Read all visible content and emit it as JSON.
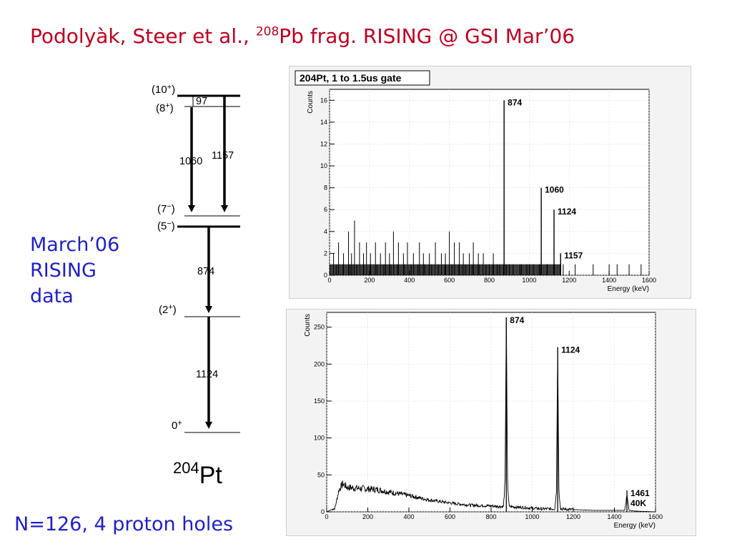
{
  "title": {
    "authors": "Podolyàk, Steer  et al., ",
    "mass_number": "208",
    "rest": "Pb frag.  RISING @ GSI Mar’06"
  },
  "side_note": [
    "March’06",
    "RISING",
    "data"
  ],
  "footer": "N=126, 4 proton holes",
  "level_scheme": {
    "nucleus_mass": "204",
    "nucleus_symbol": "Pt",
    "levels": [
      {
        "label": "(10",
        "sup": "+",
        "close": ")"
      },
      {
        "label": "(8",
        "sup": "+",
        "close": ")"
      },
      {
        "label": "(7",
        "sup": "−",
        "close": ")"
      },
      {
        "label": "(5",
        "sup": "−",
        "close": ")"
      },
      {
        "label": "(2",
        "sup": "+",
        "close": ")"
      },
      {
        "label": "0",
        "sup": "+",
        "close": ""
      }
    ],
    "transitions": [
      "97",
      "1060",
      "1157",
      "874",
      "1124"
    ]
  },
  "chart_data": [
    {
      "type": "bar",
      "title": "204Pt, 1 to 1.5us gate",
      "xlabel": "Energy (keV)",
      "ylabel": "Counts",
      "xlim": [
        0,
        1600
      ],
      "ylim": [
        0,
        17
      ],
      "xticks": [
        "0",
        "200",
        "400",
        "600",
        "800",
        "1000",
        "1200",
        "1400",
        "1600"
      ],
      "yticks": [
        "0",
        "2",
        "4",
        "6",
        "8",
        "10",
        "12",
        "14",
        "16"
      ],
      "peaks": [
        {
          "energy": 874,
          "counts": 16,
          "label": "874"
        },
        {
          "energy": 1060,
          "counts": 8,
          "label": "1060"
        },
        {
          "energy": 1124,
          "counts": 6,
          "label": "1124"
        },
        {
          "energy": 1157,
          "counts": 2,
          "label": "1157"
        }
      ],
      "background": [
        [
          20,
          2
        ],
        [
          45,
          3
        ],
        [
          70,
          2
        ],
        [
          95,
          4
        ],
        [
          110,
          2
        ],
        [
          125,
          5
        ],
        [
          150,
          3
        ],
        [
          170,
          2
        ],
        [
          185,
          3
        ],
        [
          205,
          2
        ],
        [
          230,
          3
        ],
        [
          255,
          2
        ],
        [
          280,
          3
        ],
        [
          300,
          2
        ],
        [
          320,
          4
        ],
        [
          345,
          3
        ],
        [
          370,
          2
        ],
        [
          390,
          3
        ],
        [
          420,
          2
        ],
        [
          450,
          3
        ],
        [
          470,
          2
        ],
        [
          500,
          2
        ],
        [
          530,
          3
        ],
        [
          560,
          2
        ],
        [
          580,
          2
        ],
        [
          600,
          4
        ],
        [
          625,
          3
        ],
        [
          650,
          3
        ],
        [
          670,
          2
        ],
        [
          700,
          2
        ],
        [
          720,
          3
        ],
        [
          745,
          2
        ],
        [
          770,
          2
        ],
        [
          800,
          1
        ],
        [
          820,
          2
        ],
        [
          840,
          1
        ],
        [
          900,
          1
        ],
        [
          960,
          1
        ],
        [
          1000,
          1
        ],
        [
          1050,
          1
        ],
        [
          1090,
          1
        ],
        [
          1170,
          1
        ],
        [
          1230,
          1
        ],
        [
          1320,
          1
        ],
        [
          1400,
          1
        ],
        [
          1440,
          1
        ],
        [
          1500,
          1
        ],
        [
          1560,
          1
        ]
      ]
    },
    {
      "type": "line",
      "title": "",
      "xlabel": "Energy (keV)",
      "ylabel": "Counts",
      "xlim": [
        0,
        1600
      ],
      "ylim": [
        0,
        270
      ],
      "xticks": [
        "0",
        "200",
        "400",
        "600",
        "800",
        "1000",
        "1200",
        "1400",
        "1600"
      ],
      "yticks": [
        "0",
        "50",
        "100",
        "150",
        "200",
        "250"
      ],
      "series": [
        {
          "x": [
            0,
            40,
            60,
            80,
            100,
            150,
            200,
            250,
            300,
            400,
            500,
            600,
            700,
            800,
            860,
            868,
            874,
            880,
            888,
            950,
            1050,
            1110,
            1118,
            1124,
            1130,
            1138,
            1200,
            1300,
            1400,
            1450,
            1457,
            1461,
            1465,
            1472,
            1500,
            1600
          ],
          "y": [
            0,
            5,
            30,
            38,
            33,
            32,
            31,
            30,
            27,
            22,
            16,
            12,
            9,
            8,
            7,
            40,
            263,
            40,
            7,
            6,
            4,
            4,
            30,
            223,
            30,
            4,
            3,
            2,
            2,
            2,
            12,
            29,
            12,
            2,
            1,
            0
          ]
        }
      ],
      "peaks": [
        {
          "energy": 874,
          "counts": 263,
          "label": "874"
        },
        {
          "energy": 1124,
          "counts": 223,
          "label": "1124"
        },
        {
          "energy": 1461,
          "counts": 29,
          "label": "1461",
          "label2": "40K"
        }
      ]
    }
  ]
}
